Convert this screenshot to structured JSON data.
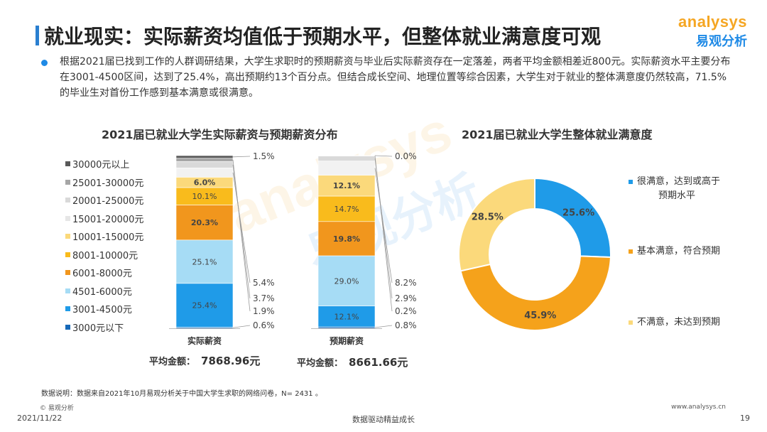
{
  "header": {
    "title": "就业现实：实际薪资均值低于预期水平，但整体就业满意度可观",
    "logo_en": "analysys",
    "logo_cn": "易观分析"
  },
  "summary": "根据2021届已找到工作的人群调研结果，大学生求职时的预期薪资与毕业后实际薪资存在一定落差，两者平均金额相差近800元。实际薪资水平主要分布在3001-4500区间，达到了25.4%，高出预期约13个百分点。但结合成长空间、地理位置等综合因素，大学生对于就业的整体满意度仍然较高，71.5%的毕业生对首份工作感到基本满意或很满意。",
  "colors": {
    "accent": "#1f8ae6",
    "logo_orange": "#f5a623"
  },
  "chart_data": [
    {
      "type": "bar",
      "title": "2021届已就业大学生实际薪资与预期薪资分布",
      "stacked": true,
      "categories": [
        "实际薪资",
        "预期薪资"
      ],
      "series": [
        {
          "name": "3000元以下",
          "color": "#1769b8",
          "values": [
            0.6,
            0.8
          ]
        },
        {
          "name": "3001-4500元",
          "color": "#1f9be8",
          "values": [
            25.4,
            12.1
          ]
        },
        {
          "name": "4501-6000元",
          "color": "#a6dcf5",
          "values": [
            25.1,
            29.0
          ]
        },
        {
          "name": "6001-8000元",
          "color": "#f1961d",
          "values": [
            20.3,
            19.8
          ]
        },
        {
          "name": "8001-10000元",
          "color": "#f9bb1c",
          "values": [
            10.1,
            14.7
          ]
        },
        {
          "name": "10001-15000元",
          "color": "#fbd97b",
          "values": [
            6.0,
            12.1
          ]
        },
        {
          "name": "15001-20000元",
          "color": "#f2f2f2",
          "values": [
            5.4,
            8.2
          ]
        },
        {
          "name": "20001-25000元",
          "color": "#d9d9d9",
          "values": [
            3.7,
            2.9
          ]
        },
        {
          "name": "25001-30000元",
          "color": "#a6a6a6",
          "values": [
            1.9,
            0.2
          ]
        },
        {
          "name": "30000元以上",
          "color": "#595959",
          "values": [
            1.5,
            0.0
          ]
        }
      ],
      "labels": [
        [
          "0.6%",
          "25.4%",
          "25.1%",
          "20.3%",
          "10.1%",
          "6.0%",
          "5.4%",
          "3.7%",
          "1.9%",
          "1.5%"
        ],
        [
          "0.8%",
          "12.1%",
          "29.0%",
          "19.8%",
          "14.7%",
          "12.1%",
          "8.2%",
          "2.9%",
          "0.2%",
          "0.0%"
        ]
      ],
      "legend_position": "left",
      "averages": [
        {
          "label": "平均金额：",
          "value": "7868.96元"
        },
        {
          "label": "平均金额：",
          "value": "8661.66元"
        }
      ]
    },
    {
      "type": "pie",
      "title": "2021届已就业大学生整体就业满意度",
      "donut": true,
      "slices": [
        {
          "name": "很满意，达到或高于预期水平",
          "value": 25.6,
          "label": "25.6%",
          "color": "#1f9be8"
        },
        {
          "name": "基本满意，符合预期",
          "value": 45.9,
          "label": "45.9%",
          "color": "#f5a21b"
        },
        {
          "name": "不满意，未达到预期",
          "value": 28.5,
          "label": "28.5%",
          "color": "#fbd97b"
        }
      ],
      "legend": {
        "item1_line1": "很满意，达到或高于",
        "item1_line2": "预期水平",
        "item2": "基本满意，符合预期",
        "item3": "不满意，未达到预期"
      },
      "legend_position": "right"
    }
  ],
  "footer": {
    "note": "数据说明：数据来自2021年10月易观分析关于中国大学生求职的网络问卷，N= 2431 。",
    "copyright": "© 易观分析",
    "date": "2021/11/22",
    "slogan": "数据驱动精益成长",
    "url": "www.analysys.cn",
    "page": "19"
  }
}
